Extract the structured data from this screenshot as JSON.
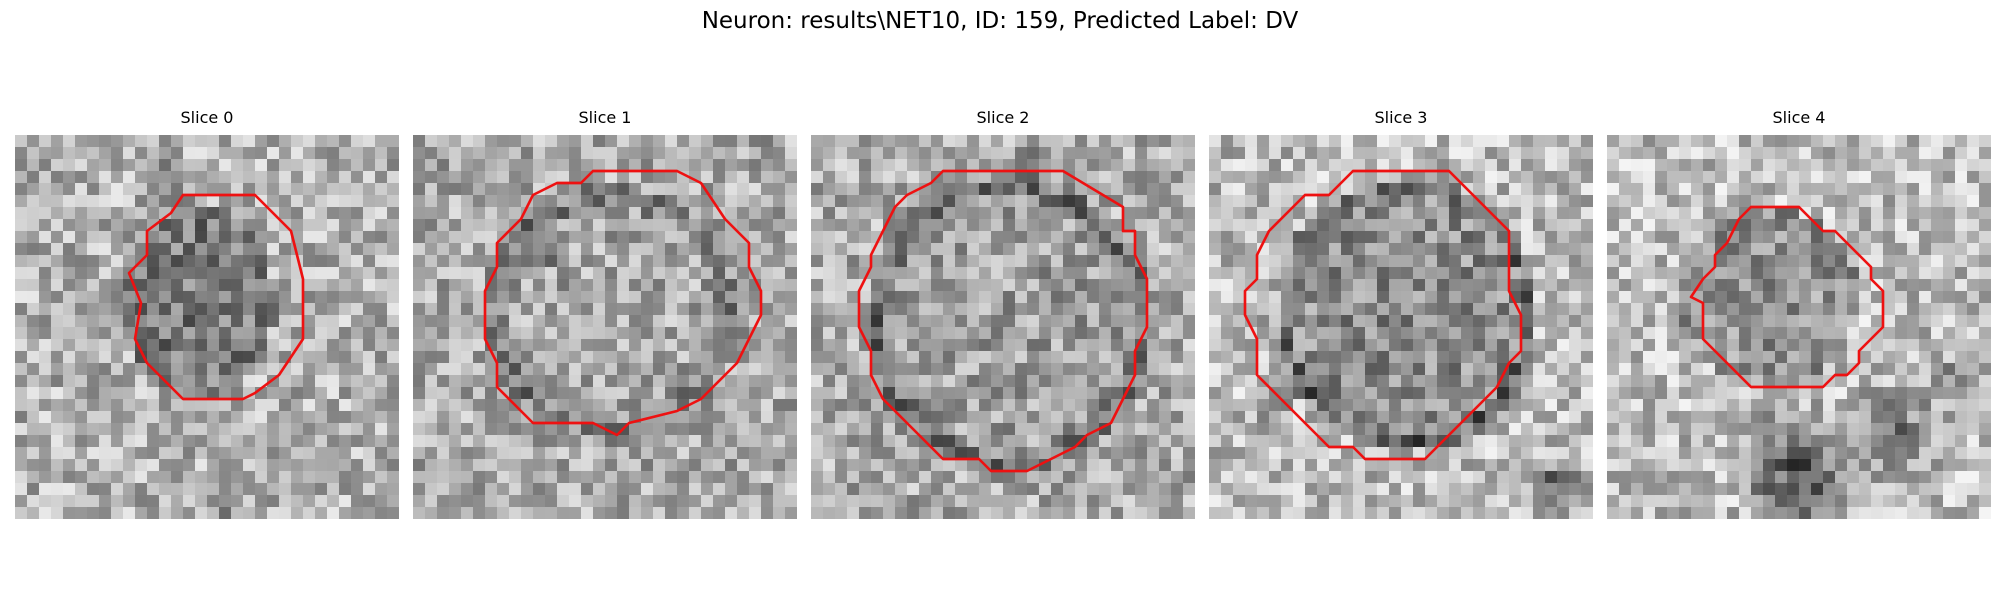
{
  "figure": {
    "title": "Neuron: results\\NET10, ID: 159, Predicted Label: DV"
  },
  "contour_color": "#ee1111",
  "panels": [
    {
      "title": "Slice 0",
      "contour_icon": "red-polygon-contour"
    },
    {
      "title": "Slice 1",
      "contour_icon": "red-polygon-contour"
    },
    {
      "title": "Slice 2",
      "contour_icon": "red-polygon-contour"
    },
    {
      "title": "Slice 3",
      "contour_icon": "red-polygon-contour"
    },
    {
      "title": "Slice 4",
      "contour_icon": "red-polygon-contour"
    }
  ]
}
